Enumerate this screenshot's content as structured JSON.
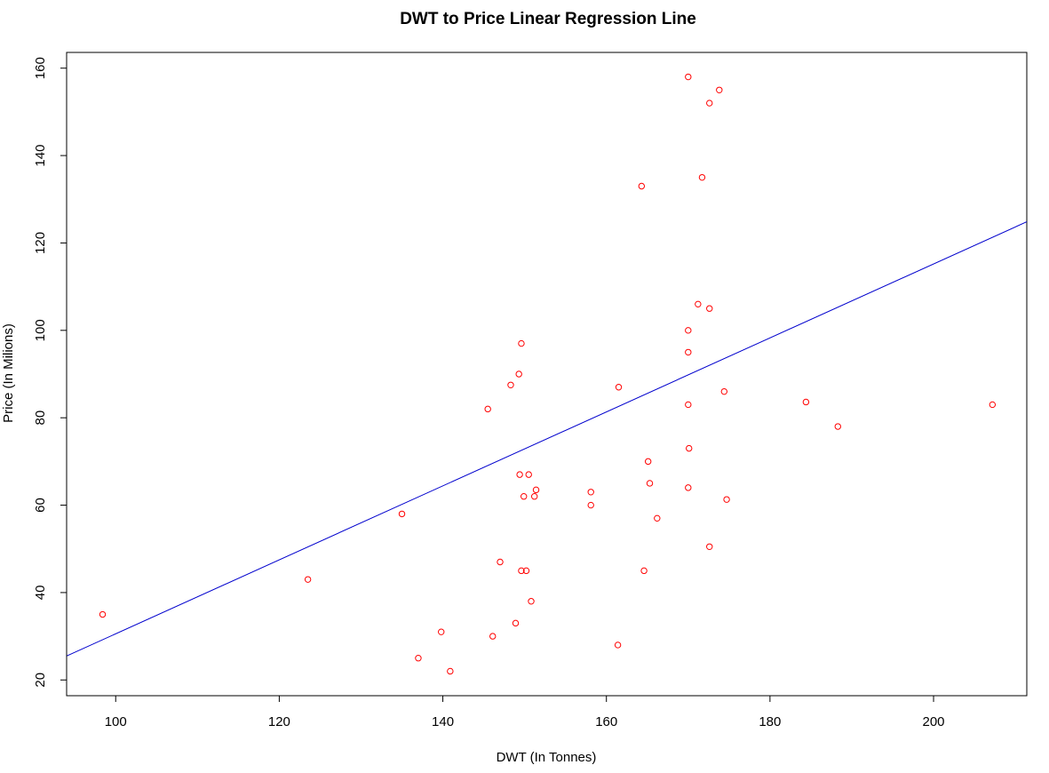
{
  "chart_data": {
    "type": "scatter",
    "title": "DWT to Price Linear Regression Line",
    "xlabel": "DWT (In Tonnes)",
    "ylabel": "Price (In Milions)",
    "xlim": [
      94,
      211.4
    ],
    "ylim": [
      16.4,
      163.6
    ],
    "xticks": [
      "100",
      "120",
      "140",
      "160",
      "180",
      "200"
    ],
    "yticks": [
      "20",
      "40",
      "60",
      "80",
      "100",
      "120",
      "140",
      "160"
    ],
    "grid": false,
    "legend": "none",
    "series": [
      {
        "kind": "points",
        "color": "#ff0000",
        "marker": "open-circle",
        "points": [
          [
            98.4,
            35
          ],
          [
            123.5,
            43
          ],
          [
            135,
            58
          ],
          [
            137,
            25
          ],
          [
            139.8,
            31
          ],
          [
            140.9,
            22
          ],
          [
            145.5,
            82
          ],
          [
            146.1,
            30
          ],
          [
            147,
            47
          ],
          [
            148.3,
            87.5
          ],
          [
            148.9,
            33
          ],
          [
            149.3,
            90
          ],
          [
            149.4,
            67
          ],
          [
            149.6,
            97
          ],
          [
            149.6,
            45
          ],
          [
            149.9,
            62
          ],
          [
            150.2,
            45
          ],
          [
            150.5,
            67
          ],
          [
            150.8,
            38
          ],
          [
            151.2,
            62
          ],
          [
            151.4,
            63.5
          ],
          [
            158.1,
            63
          ],
          [
            158.1,
            60
          ],
          [
            161.4,
            28
          ],
          [
            161.5,
            87
          ],
          [
            164.3,
            133
          ],
          [
            164.6,
            45
          ],
          [
            165.1,
            70
          ],
          [
            165.3,
            65
          ],
          [
            166.2,
            57
          ],
          [
            170,
            158
          ],
          [
            170,
            100
          ],
          [
            170,
            95
          ],
          [
            170,
            83
          ],
          [
            170,
            64
          ],
          [
            170.1,
            73
          ],
          [
            171.2,
            106
          ],
          [
            171.7,
            135
          ],
          [
            172.6,
            152
          ],
          [
            172.6,
            105
          ],
          [
            172.6,
            50.5
          ],
          [
            173.8,
            155
          ],
          [
            174.4,
            86
          ],
          [
            174.7,
            61.3
          ],
          [
            184.4,
            83.6
          ],
          [
            188.3,
            78
          ],
          [
            207.2,
            83
          ]
        ]
      },
      {
        "kind": "regression-line",
        "color": "#0000cd",
        "intercept": -54.08,
        "slope": 0.8464
      }
    ]
  }
}
